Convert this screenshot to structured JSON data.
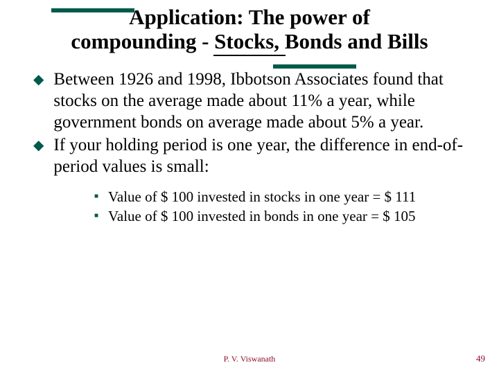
{
  "colors": {
    "accent": "#005a4a",
    "footer": "#8a0f2a",
    "text": "#000000",
    "background": "#ffffff"
  },
  "title": "Application:  The power of compounding - Stocks, Bonds and Bills",
  "bullets": [
    "Between 1926 and 1998, Ibbotson Associates found that stocks on the average made about 11% a year, while government bonds on average made about 5% a year.",
    "If  your holding period is one year, the difference in end-of-period values is small:"
  ],
  "sub_bullets": [
    "Value of $ 100 invested in stocks in one year = $ 111",
    "Value of $ 100 invested in bonds in one year = $ 105"
  ],
  "footer": {
    "author": "P. V. Viswanath",
    "page": "49"
  }
}
